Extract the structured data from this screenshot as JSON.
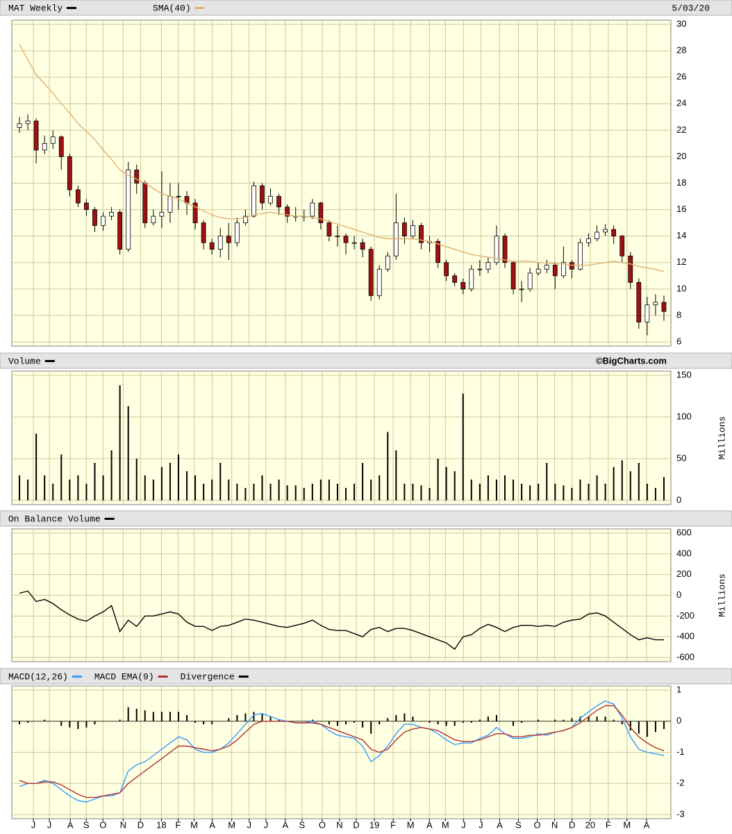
{
  "chart_data": [
    {
      "type": "candlestick",
      "date": "5/03/20",
      "ylim": [
        6,
        30
      ],
      "yticks": [
        6,
        8,
        10,
        12,
        14,
        16,
        18,
        20,
        22,
        24,
        26,
        28,
        30
      ],
      "grid": true,
      "series": [
        {
          "name": "MAT Weekly",
          "color": "#000000",
          "up_color": "#ffffff",
          "down_color": "#a01010",
          "open": [
            22.2,
            22.5,
            22.7,
            20.5,
            21,
            21.5,
            20,
            17.5,
            16.5,
            16,
            14.8,
            15.5,
            15.8,
            13,
            19,
            18,
            15,
            15.5,
            15.8,
            17,
            17,
            16.5,
            15,
            13.5,
            13,
            14,
            13.5,
            15,
            15.5,
            17.8,
            16.5,
            17,
            16.2,
            15.5,
            15.5,
            15.5,
            16.5,
            15,
            14,
            14,
            13.5,
            13.5,
            13,
            9.5,
            11.5,
            12.5,
            15,
            14,
            14.8,
            13.5,
            13.6,
            12,
            11,
            10.5,
            10,
            11.5,
            11.5,
            12,
            14,
            12,
            10,
            10,
            11.2,
            11.5,
            11.8,
            11,
            12,
            11.5,
            13.5,
            13.8,
            14.3,
            14.5,
            14,
            12.5,
            10.5,
            7.5,
            8.8,
            9
          ],
          "high": [
            23,
            23.2,
            22.9,
            21.6,
            22,
            21.6,
            20.2,
            17.8,
            16.8,
            16.2,
            15.8,
            16.2,
            16,
            19.6,
            19.4,
            18.2,
            16,
            18.9,
            18,
            18,
            17.4,
            16.8,
            15.2,
            13.8,
            14.6,
            15,
            15.4,
            16,
            18.1,
            18,
            17.6,
            17.2,
            16.4,
            16.2,
            16,
            16.8,
            16.6,
            15.2,
            14.8,
            14.2,
            14,
            13.8,
            13.2,
            11.8,
            12.8,
            17.2,
            15.4,
            15.2,
            15,
            14,
            13.8,
            12.2,
            11.2,
            10.8,
            11.8,
            12.2,
            12.4,
            14.8,
            14.2,
            12.1,
            10.6,
            11.6,
            12,
            12.2,
            12,
            13.2,
            12.2,
            13.8,
            14.2,
            14.8,
            14.9,
            14.8,
            14.1,
            12.8,
            10.8,
            9.4,
            9.6,
            9.5
          ],
          "low": [
            21.8,
            22,
            19.5,
            20.2,
            20.6,
            19,
            17,
            16.2,
            15.5,
            14.3,
            14.4,
            15.2,
            12.6,
            12.8,
            17.2,
            14.6,
            14.8,
            14.6,
            15,
            16,
            15.6,
            14.5,
            13,
            12.6,
            12.4,
            12.2,
            13.2,
            14.8,
            15.4,
            16,
            16.3,
            15.6,
            15,
            15.1,
            15.1,
            15.3,
            14.5,
            13.6,
            13.2,
            12.6,
            13,
            12.4,
            9.1,
            9.2,
            11.3,
            12.2,
            13.4,
            13.8,
            13,
            12.8,
            11.6,
            10.6,
            10.2,
            9.6,
            9.8,
            11,
            11.2,
            11.8,
            11.6,
            9.6,
            9,
            9.8,
            11,
            11.2,
            10,
            10.8,
            10.8,
            11.4,
            13.2,
            13.6,
            14,
            13.4,
            12,
            10,
            7,
            6.5,
            8,
            7.6
          ],
          "close": [
            22.5,
            22.7,
            20.5,
            21,
            21.5,
            20,
            17.5,
            16.5,
            16,
            14.8,
            15.5,
            15.8,
            13,
            19,
            18,
            15,
            15.5,
            15.8,
            17,
            17,
            16.5,
            15,
            13.5,
            13,
            14,
            13.5,
            15,
            15.5,
            17.8,
            16.5,
            17,
            16.2,
            15.5,
            15.5,
            15.5,
            16.5,
            15,
            14,
            14,
            13.5,
            13.5,
            13,
            9.5,
            11.5,
            12.5,
            15,
            14,
            14.8,
            13.5,
            13.6,
            12,
            11,
            10.5,
            10,
            11.5,
            11.5,
            12,
            14,
            12,
            10,
            10,
            11.2,
            11.5,
            11.8,
            11,
            12,
            11.5,
            13.5,
            13.8,
            14.3,
            14.5,
            14,
            12.5,
            10.5,
            7.5,
            8.8,
            9,
            8.3
          ]
        },
        {
          "name": "SMA(40)",
          "type": "line",
          "color": "#e0b070",
          "values": [
            28.5,
            27.3,
            26.2,
            25.5,
            24.8,
            24,
            23.3,
            22.5,
            21.9,
            21.3,
            20.5,
            19.8,
            19,
            18.6,
            18.3,
            18,
            17.6,
            17.2,
            17,
            16.8,
            16.5,
            16.2,
            15.9,
            15.6,
            15.4,
            15.3,
            15.3,
            15.4,
            15.6,
            15.7,
            15.8,
            15.7,
            15.6,
            15.5,
            15.5,
            15.4,
            15.3,
            15.1,
            14.9,
            14.7,
            14.5,
            14.3,
            14.1,
            13.9,
            13.8,
            13.8,
            13.8,
            13.8,
            13.7,
            13.6,
            13.4,
            13.2,
            13,
            12.8,
            12.6,
            12.5,
            12.4,
            12.3,
            12.2,
            12.1,
            12.1,
            12.1,
            12,
            12,
            11.9,
            11.9,
            11.8,
            11.8,
            11.8,
            11.9,
            12,
            12.1,
            12,
            11.9,
            11.7,
            11.6,
            11.5,
            11.3
          ]
        }
      ]
    },
    {
      "type": "bar",
      "credit": "©BigCharts.com",
      "ylabel": "Millions",
      "ylim": [
        0,
        150
      ],
      "yticks": [
        0,
        50,
        100,
        150
      ],
      "grid": true,
      "series": [
        {
          "name": "Volume",
          "color": "#000000",
          "values": [
            30,
            25,
            80,
            30,
            20,
            55,
            25,
            30,
            20,
            45,
            30,
            60,
            138,
            113,
            50,
            30,
            25,
            40,
            45,
            55,
            35,
            30,
            20,
            25,
            45,
            25,
            20,
            15,
            20,
            30,
            20,
            25,
            18,
            18,
            15,
            20,
            25,
            25,
            20,
            15,
            20,
            45,
            25,
            30,
            82,
            60,
            20,
            20,
            18,
            15,
            50,
            40,
            35,
            128,
            25,
            20,
            30,
            25,
            30,
            25,
            20,
            18,
            20,
            45,
            20,
            18,
            15,
            25,
            20,
            30,
            20,
            40,
            48,
            35,
            45,
            20,
            15,
            28
          ]
        }
      ]
    },
    {
      "type": "line",
      "ylabel": "Millions",
      "ylim": [
        -600,
        600
      ],
      "yticks": [
        -600,
        -400,
        -200,
        0,
        200,
        400,
        600
      ],
      "grid": true,
      "series": [
        {
          "name": "On Balance Volume",
          "color": "#000000",
          "values": [
            20,
            40,
            -60,
            -40,
            -80,
            -140,
            -190,
            -230,
            -250,
            -200,
            -160,
            -100,
            -350,
            -240,
            -300,
            -200,
            -200,
            -180,
            -160,
            -180,
            -260,
            -300,
            -300,
            -340,
            -300,
            -290,
            -260,
            -230,
            -240,
            -260,
            -280,
            -300,
            -310,
            -290,
            -270,
            -240,
            -290,
            -330,
            -340,
            -340,
            -370,
            -400,
            -330,
            -310,
            -350,
            -320,
            -320,
            -340,
            -370,
            -400,
            -430,
            -460,
            -520,
            -400,
            -380,
            -320,
            -280,
            -310,
            -350,
            -310,
            -290,
            -290,
            -300,
            -290,
            -300,
            -260,
            -240,
            -230,
            -180,
            -170,
            -200,
            -260,
            -320,
            -380,
            -430,
            -410,
            -430,
            -430
          ]
        }
      ]
    },
    {
      "type": "macd",
      "ylim": [
        -3,
        1
      ],
      "yticks": [
        -3,
        -2,
        -1,
        0,
        1
      ],
      "grid": true,
      "xlim": [
        -0.5,
        77.5
      ],
      "xticks": [
        {
          "value": 1.66,
          "label": "J"
        },
        {
          "value": 3.57,
          "label": "J"
        },
        {
          "value": 6.07,
          "label": "A"
        },
        {
          "value": 7.98,
          "label": "S"
        },
        {
          "value": 9.98,
          "label": "O"
        },
        {
          "value": 12.39,
          "label": "N"
        },
        {
          "value": 14.47,
          "label": "D"
        },
        {
          "value": 16.96,
          "label": "18"
        },
        {
          "value": 18.96,
          "label": "F"
        },
        {
          "value": 20.87,
          "label": "M"
        },
        {
          "value": 23.03,
          "label": "A"
        },
        {
          "value": 25.36,
          "label": "M"
        },
        {
          "value": 27.44,
          "label": "J"
        },
        {
          "value": 29.44,
          "label": "J"
        },
        {
          "value": 31.76,
          "label": "A"
        },
        {
          "value": 33.76,
          "label": "S"
        },
        {
          "value": 36.17,
          "label": "O"
        },
        {
          "value": 38.25,
          "label": "N"
        },
        {
          "value": 40.24,
          "label": "D"
        },
        {
          "value": 42.41,
          "label": "19"
        },
        {
          "value": 44.65,
          "label": "F"
        },
        {
          "value": 46.73,
          "label": "M"
        },
        {
          "value": 48.98,
          "label": "A"
        },
        {
          "value": 50.89,
          "label": "M"
        },
        {
          "value": 53.05,
          "label": "J"
        },
        {
          "value": 55.13,
          "label": "J"
        },
        {
          "value": 57.37,
          "label": "A"
        },
        {
          "value": 59.62,
          "label": "S"
        },
        {
          "value": 61.86,
          "label": "O"
        },
        {
          "value": 63.94,
          "label": "N"
        },
        {
          "value": 66.02,
          "label": "D"
        },
        {
          "value": 68.19,
          "label": "20"
        },
        {
          "value": 70.35,
          "label": "F"
        },
        {
          "value": 72.59,
          "label": "M"
        },
        {
          "value": 74.92,
          "label": "A"
        }
      ],
      "series": [
        {
          "name": "MACD(12,26)",
          "type": "line",
          "color": "#3399ff",
          "values": [
            -2.1,
            -2,
            -2,
            -1.9,
            -2,
            -2.2,
            -2.4,
            -2.55,
            -2.6,
            -2.5,
            -2.4,
            -2.4,
            -2.3,
            -1.6,
            -1.4,
            -1.3,
            -1.1,
            -0.9,
            -0.7,
            -0.5,
            -0.6,
            -0.9,
            -1,
            -1,
            -0.9,
            -0.7,
            -0.4,
            -0.1,
            0.2,
            0.25,
            0.15,
            0.05,
            0,
            -0.05,
            -0.05,
            0,
            -0.1,
            -0.3,
            -0.45,
            -0.5,
            -0.55,
            -0.8,
            -1.3,
            -1.1,
            -0.8,
            -0.4,
            -0.1,
            -0.1,
            -0.2,
            -0.25,
            -0.4,
            -0.6,
            -0.75,
            -0.7,
            -0.7,
            -0.55,
            -0.45,
            -0.2,
            -0.4,
            -0.55,
            -0.55,
            -0.5,
            -0.4,
            -0.45,
            -0.35,
            -0.3,
            -0.2,
            0.1,
            0.3,
            0.5,
            0.65,
            0.55,
            0.1,
            -0.5,
            -0.9,
            -1,
            -1.05,
            -1.1
          ]
        },
        {
          "name": "MACD EMA(9)",
          "type": "line",
          "color": "#b03030",
          "values": [
            -1.9,
            -2,
            -2,
            -1.95,
            -1.95,
            -2.05,
            -2.2,
            -2.35,
            -2.45,
            -2.45,
            -2.4,
            -2.35,
            -2.3,
            -2,
            -1.8,
            -1.6,
            -1.4,
            -1.2,
            -1,
            -0.8,
            -0.8,
            -0.85,
            -0.9,
            -0.95,
            -0.9,
            -0.8,
            -0.6,
            -0.35,
            -0.1,
            0,
            0,
            0,
            0,
            -0.05,
            -0.05,
            -0.05,
            -0.1,
            -0.2,
            -0.3,
            -0.4,
            -0.5,
            -0.6,
            -0.9,
            -1,
            -0.9,
            -0.6,
            -0.35,
            -0.25,
            -0.2,
            -0.25,
            -0.3,
            -0.45,
            -0.6,
            -0.65,
            -0.65,
            -0.6,
            -0.5,
            -0.4,
            -0.4,
            -0.5,
            -0.5,
            -0.45,
            -0.45,
            -0.4,
            -0.35,
            -0.3,
            -0.2,
            -0.05,
            0.15,
            0.35,
            0.5,
            0.5,
            0.2,
            -0.2,
            -0.5,
            -0.7,
            -0.85,
            -0.95
          ]
        },
        {
          "name": "Divergence",
          "type": "bar",
          "color": "#000000",
          "values": [
            -0.1,
            -0.05,
            0,
            0.05,
            0,
            -0.15,
            -0.2,
            -0.25,
            -0.2,
            -0.1,
            0,
            0,
            0.05,
            0.45,
            0.4,
            0.35,
            0.3,
            0.3,
            0.3,
            0.3,
            0.2,
            -0.05,
            -0.1,
            -0.1,
            0,
            0.1,
            0.2,
            0.25,
            0.3,
            0.25,
            0.15,
            0.05,
            0,
            0,
            0,
            0.05,
            0,
            -0.1,
            -0.15,
            -0.1,
            -0.05,
            -0.2,
            -0.4,
            -0.1,
            0.1,
            0.2,
            0.25,
            0.15,
            0,
            -0.05,
            -0.1,
            -0.15,
            -0.15,
            -0.05,
            -0.05,
            0.05,
            0.15,
            0.2,
            0,
            -0.15,
            -0.05,
            0,
            0.05,
            0,
            0.05,
            0.05,
            0.1,
            0.15,
            0.15,
            0.15,
            0.15,
            0.05,
            -0.1,
            -0.3,
            -0.4,
            -0.5,
            -0.35,
            -0.25
          ]
        }
      ]
    }
  ]
}
